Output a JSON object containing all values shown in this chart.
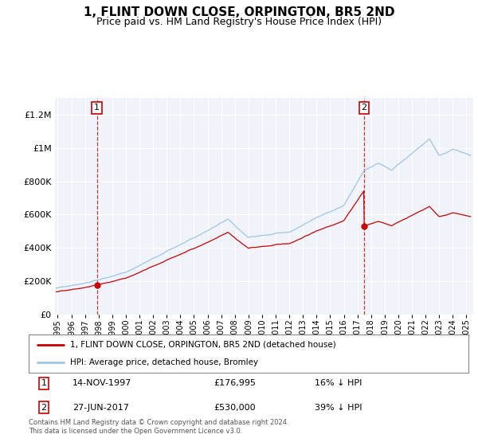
{
  "title": "1, FLINT DOWN CLOSE, ORPINGTON, BR5 2ND",
  "subtitle": "Price paid vs. HM Land Registry's House Price Index (HPI)",
  "background_color": "#ffffff",
  "plot_bg_color": "#f0f4fa",
  "hpi_color": "#9ec4e8",
  "price_color": "#cc0000",
  "sale1_date": 1997.87,
  "sale1_price": 176995,
  "sale2_date": 2017.48,
  "sale2_price": 530000,
  "ylim": [
    0,
    1300000
  ],
  "xlim": [
    1994.8,
    2025.5
  ],
  "yticks": [
    0,
    200000,
    400000,
    600000,
    800000,
    1000000,
    1200000
  ],
  "ytick_labels": [
    "£0",
    "£200K",
    "£400K",
    "£600K",
    "£800K",
    "£1M",
    "£1.2M"
  ],
  "legend_label_price": "1, FLINT DOWN CLOSE, ORPINGTON, BR5 2ND (detached house)",
  "legend_label_hpi": "HPI: Average price, detached house, Bromley",
  "annotation1_label": "1",
  "annotation2_label": "2",
  "table_row1": [
    "1",
    "14-NOV-1997",
    "£176,995",
    "16% ↓ HPI"
  ],
  "table_row2": [
    "2",
    "27-JUN-2017",
    "£530,000",
    "39% ↓ HPI"
  ],
  "footnote": "Contains HM Land Registry data © Crown copyright and database right 2024.\nThis data is licensed under the Open Government Licence v3.0.",
  "xtick_years": [
    1995,
    1996,
    1997,
    1998,
    1999,
    2000,
    2001,
    2002,
    2003,
    2004,
    2005,
    2006,
    2007,
    2008,
    2009,
    2010,
    2011,
    2012,
    2013,
    2014,
    2015,
    2016,
    2017,
    2018,
    2019,
    2020,
    2021,
    2022,
    2023,
    2024,
    2025
  ]
}
